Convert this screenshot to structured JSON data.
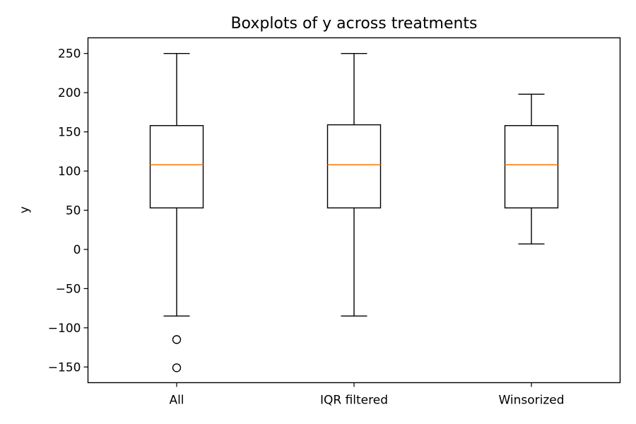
{
  "chart_data": {
    "type": "boxplot",
    "title": "Boxplots of y across treatments",
    "xlabel": "",
    "ylabel": "y",
    "ylim": [
      -170,
      270
    ],
    "yticks": [
      250,
      200,
      150,
      100,
      50,
      0,
      -50,
      -100,
      -150
    ],
    "ytick_labels": [
      "250",
      "200",
      "150",
      "100",
      "50",
      "0",
      "−50",
      "−100",
      "−150"
    ],
    "categories": [
      "All",
      "IQR filtered",
      "Winsorized"
    ],
    "median_color": "#ff7f0e",
    "grid": false,
    "boxes": [
      {
        "category": "All",
        "whisker_low": -85,
        "q1": 53,
        "median": 108,
        "q3": 158,
        "whisker_high": 250,
        "outliers": [
          -115,
          -151
        ]
      },
      {
        "category": "IQR filtered",
        "whisker_low": -85,
        "q1": 53,
        "median": 108,
        "q3": 159,
        "whisker_high": 250,
        "outliers": []
      },
      {
        "category": "Winsorized",
        "whisker_low": 7,
        "q1": 53,
        "median": 108,
        "q3": 158,
        "whisker_high": 198,
        "outliers": []
      }
    ]
  }
}
